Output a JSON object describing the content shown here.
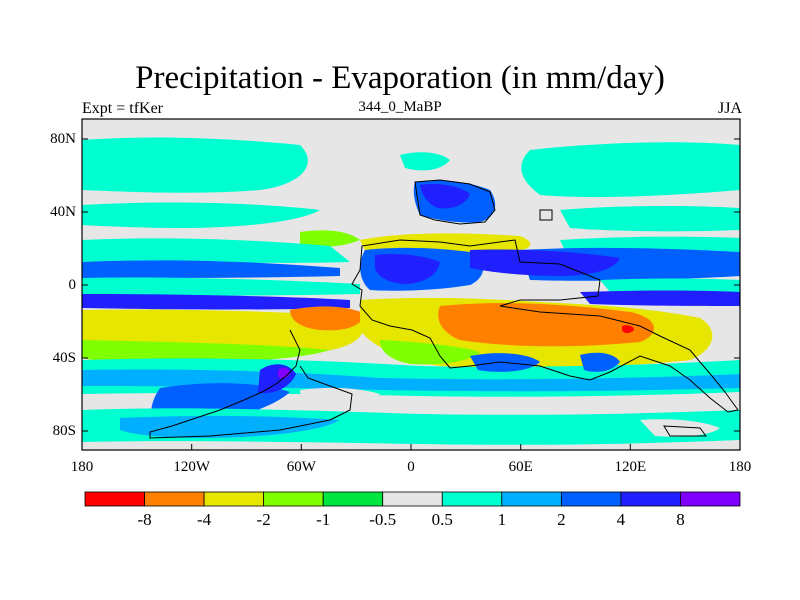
{
  "title": "Precipitation - Evaporation (in mm/day)",
  "subtitle": "344_0_MaBP",
  "left_label": "Expt = tfKer",
  "right_label": "JJA",
  "lat_ticks": [
    "80N",
    "40N",
    "0",
    "40S",
    "80S"
  ],
  "lon_ticks": [
    "180",
    "120W",
    "60W",
    "0",
    "60E",
    "120E",
    "180"
  ],
  "colorbar": {
    "colors": [
      "#ff0000",
      "#ff8000",
      "#e6e600",
      "#80ff00",
      "#00e640",
      "#e6e6e6",
      "#00ffd0",
      "#00b0ff",
      "#0060ff",
      "#2020ff",
      "#8000ff"
    ],
    "labels": [
      "-8",
      "-4",
      "-2",
      "-1",
      "-0.5",
      "0.5",
      "1",
      "2",
      "4",
      "8"
    ]
  },
  "palette": {
    "neutral": "#e6e6e6",
    "cyan": "#00ffd0",
    "sky": "#00b0ff",
    "blue": "#0060ff",
    "deep_blue": "#2020ff",
    "violet": "#8000ff",
    "green": "#00e640",
    "lime": "#80ff00",
    "yellow": "#e6e600",
    "orange": "#ff8000",
    "red": "#ff0000",
    "coastline": "#000000"
  }
}
